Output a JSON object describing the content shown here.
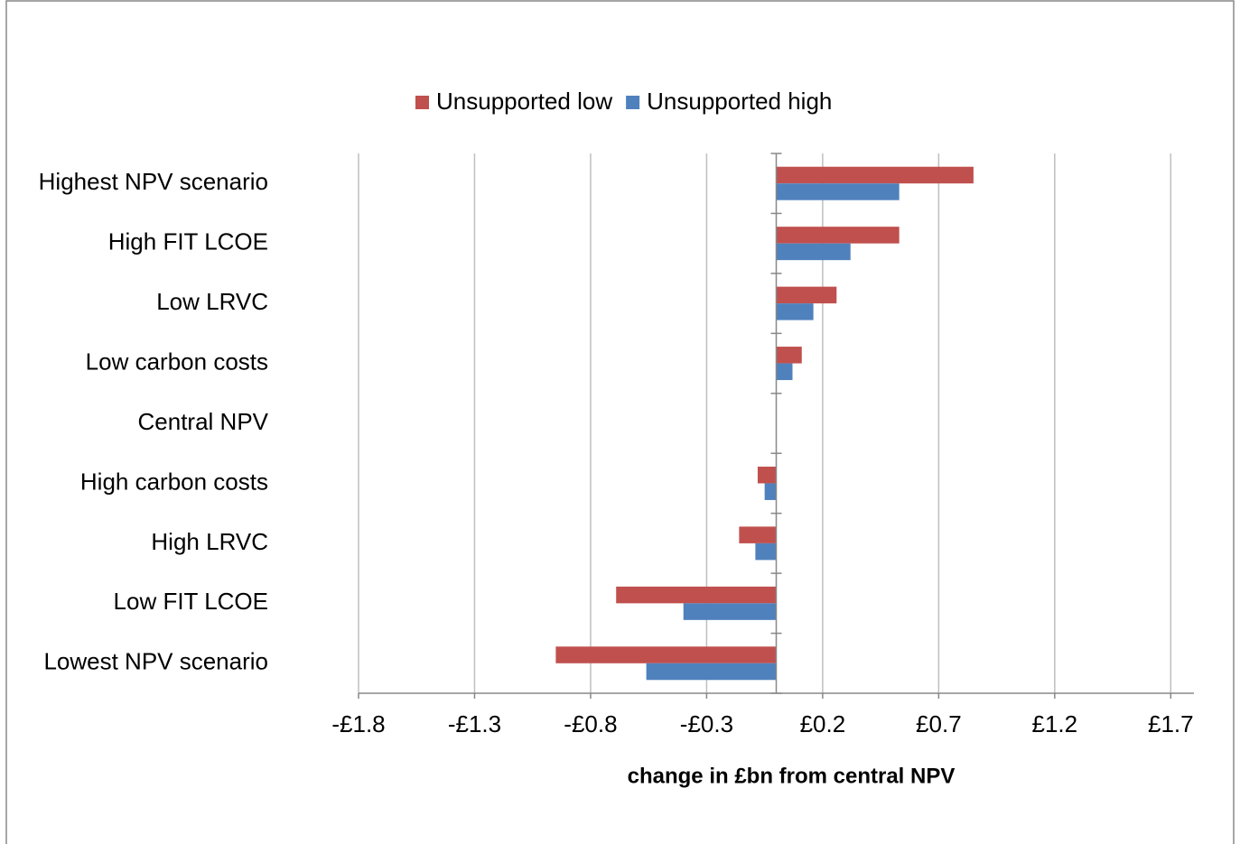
{
  "chart_data": {
    "type": "barh",
    "xlabel": "change in £bn from central NPV",
    "categories": [
      "Highest NPV scenario",
      "High FIT LCOE",
      "Low LRVC",
      "Low carbon costs",
      "Central NPV",
      "High carbon costs",
      "High LRVC",
      "Low FIT LCOE",
      "Lowest NPV scenario"
    ],
    "series": [
      {
        "name": "Unsupported low",
        "color": "#c0504d",
        "values": [
          0.85,
          0.53,
          0.26,
          0.11,
          0,
          -0.08,
          -0.16,
          -0.69,
          -0.95
        ]
      },
      {
        "name": "Unsupported high",
        "color": "#4f81bd",
        "values": [
          0.53,
          0.32,
          0.16,
          0.07,
          0,
          -0.05,
          -0.09,
          -0.4,
          -0.56
        ]
      }
    ],
    "xlim": [
      -1.8,
      1.8
    ],
    "xticks": [
      {
        "value": -1.8,
        "label": "-£1.8"
      },
      {
        "value": -1.3,
        "label": "-£1.3"
      },
      {
        "value": -0.8,
        "label": "-£0.8"
      },
      {
        "value": -0.3,
        "label": "-£0.3"
      },
      {
        "value": 0.2,
        "label": "£0.2"
      },
      {
        "value": 0.7,
        "label": "£0.7"
      },
      {
        "value": 1.2,
        "label": "£1.2"
      },
      {
        "value": 1.7,
        "label": "£1.7"
      }
    ],
    "grid": true,
    "legend": "top"
  }
}
